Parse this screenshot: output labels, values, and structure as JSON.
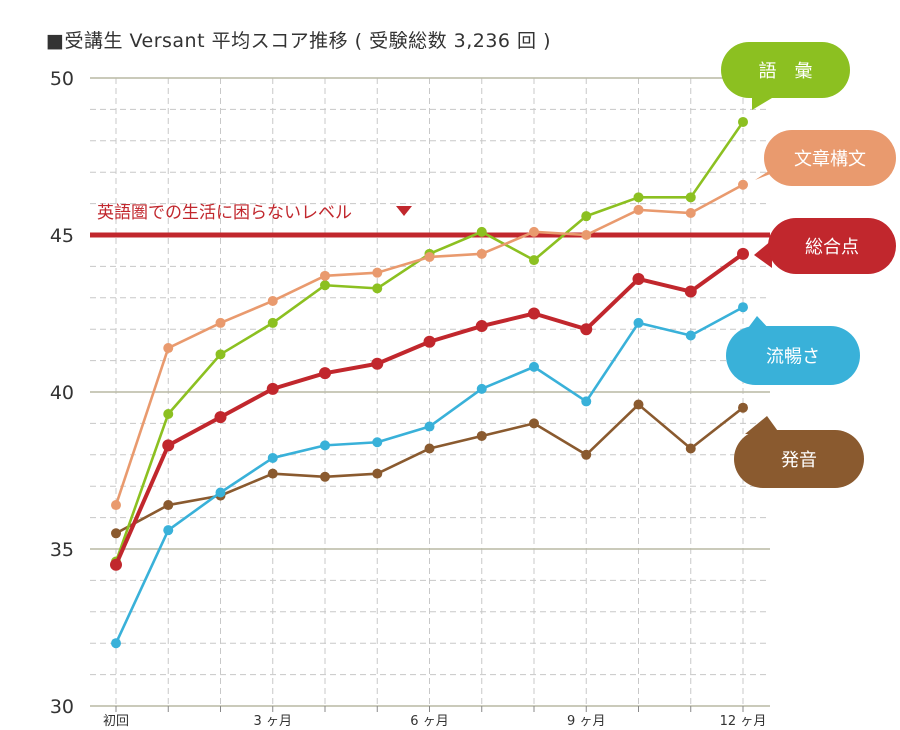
{
  "colors": {
    "vocabulary": "#8cc021",
    "sentence": "#e99a6e",
    "total": "#c1272d",
    "fluency": "#39b1d9",
    "pronunciation": "#8a5a2f",
    "threshold": "#c1272d",
    "major_grid": "#b9b9a4",
    "minor_grid": "#c8c8c8",
    "axis": "#888888",
    "axis_text": "#333333"
  },
  "chart_data": {
    "type": "line",
    "title": "■受講生 Versant 平均スコア推移 ( 受験総数 3,236 回 )",
    "xlabel": "",
    "ylabel": "",
    "categories": [
      "初回",
      "",
      "",
      "3 ヶ月",
      "",
      "",
      "6 ヶ月",
      "",
      "",
      "9 ヶ月",
      "",
      "",
      "12 ヶ月"
    ],
    "ylim": [
      30,
      50
    ],
    "yticks": [
      "30",
      "35",
      "40",
      "45",
      "50"
    ],
    "grid": true,
    "legend_position": "right",
    "threshold": {
      "value": 45,
      "label": "英語圏での生活に困らないレベル"
    },
    "series": [
      {
        "key": "vocabulary",
        "name": "語　彙",
        "values": [
          34.6,
          39.3,
          41.2,
          42.2,
          43.4,
          43.3,
          44.4,
          45.1,
          44.2,
          45.6,
          46.2,
          46.2,
          48.6
        ]
      },
      {
        "key": "sentence",
        "name": "文章構文",
        "values": [
          36.4,
          41.4,
          42.2,
          42.9,
          43.7,
          43.8,
          44.3,
          44.4,
          45.1,
          45.0,
          45.8,
          45.7,
          46.6
        ]
      },
      {
        "key": "total",
        "name": "総合点",
        "values": [
          34.5,
          38.3,
          39.2,
          40.1,
          40.6,
          40.9,
          41.6,
          42.1,
          42.5,
          42.0,
          43.6,
          43.2,
          44.4
        ]
      },
      {
        "key": "fluency",
        "name": "流暢さ",
        "values": [
          32.0,
          35.6,
          36.8,
          37.9,
          38.3,
          38.4,
          38.9,
          40.1,
          40.8,
          39.7,
          42.2,
          41.8,
          42.7
        ]
      },
      {
        "key": "pronunciation",
        "name": "発音",
        "values": [
          35.5,
          36.4,
          36.7,
          37.4,
          37.3,
          37.4,
          38.2,
          38.6,
          39.0,
          38.0,
          39.6,
          38.2,
          39.5
        ]
      }
    ]
  }
}
